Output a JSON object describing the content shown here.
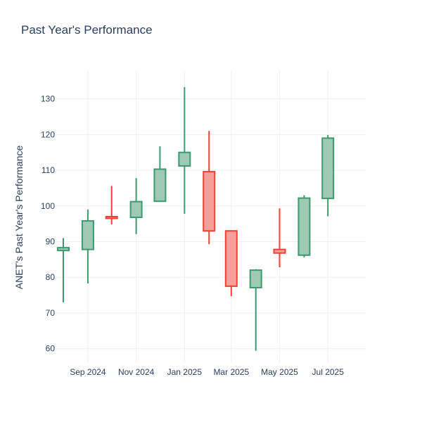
{
  "chart_data": {
    "type": "candlestick",
    "title": "Past Year's Performance",
    "xlabel": "",
    "ylabel": "ANET's Past Year's Performance",
    "ylim": [
      56,
      138
    ],
    "xlim": [
      "2024-08-01",
      "2025-07-31"
    ],
    "y_ticks": [
      60,
      70,
      80,
      90,
      100,
      110,
      120,
      130
    ],
    "x_ticks": [
      {
        "date": "2024-09-01",
        "label": "Sep 2024"
      },
      {
        "date": "2024-11-01",
        "label": "Nov 2024"
      },
      {
        "date": "2025-01-01",
        "label": "Jan 2025"
      },
      {
        "date": "2025-03-01",
        "label": "Mar 2025"
      },
      {
        "date": "2025-05-01",
        "label": "May 2025"
      },
      {
        "date": "2025-07-01",
        "label": "Jul 2025"
      }
    ],
    "grid": true,
    "colors": {
      "increasing_line": "#3d9970",
      "increasing_fill": "#9ecab3",
      "decreasing_line": "#ef4136",
      "decreasing_fill": "#f7a09a"
    },
    "candles": [
      {
        "date": "2024-08-01",
        "open": 87.5,
        "high": 91.0,
        "low": 73.0,
        "close": 88.3
      },
      {
        "date": "2024-09-01",
        "open": 87.8,
        "high": 99.0,
        "low": 78.3,
        "close": 95.8
      },
      {
        "date": "2024-10-01",
        "open": 97.0,
        "high": 105.6,
        "low": 94.8,
        "close": 96.5
      },
      {
        "date": "2024-11-01",
        "open": 96.8,
        "high": 107.8,
        "low": 92.1,
        "close": 101.2
      },
      {
        "date": "2024-12-01",
        "open": 101.3,
        "high": 116.7,
        "low": 101.2,
        "close": 110.3
      },
      {
        "date": "2025-01-01",
        "open": 111.2,
        "high": 133.3,
        "low": 97.8,
        "close": 115.0
      },
      {
        "date": "2025-02-01",
        "open": 109.6,
        "high": 121.0,
        "low": 89.3,
        "close": 93.0
      },
      {
        "date": "2025-03-01",
        "open": 93.0,
        "high": 93.0,
        "low": 74.7,
        "close": 77.5
      },
      {
        "date": "2025-04-01",
        "open": 77.1,
        "high": 82.3,
        "low": 59.4,
        "close": 82.0
      },
      {
        "date": "2025-05-01",
        "open": 87.8,
        "high": 99.3,
        "low": 82.8,
        "close": 86.8
      },
      {
        "date": "2025-06-01",
        "open": 86.2,
        "high": 103.0,
        "low": 85.6,
        "close": 102.2
      },
      {
        "date": "2025-07-01",
        "open": 102.1,
        "high": 119.9,
        "low": 97.1,
        "close": 119.0
      }
    ]
  }
}
